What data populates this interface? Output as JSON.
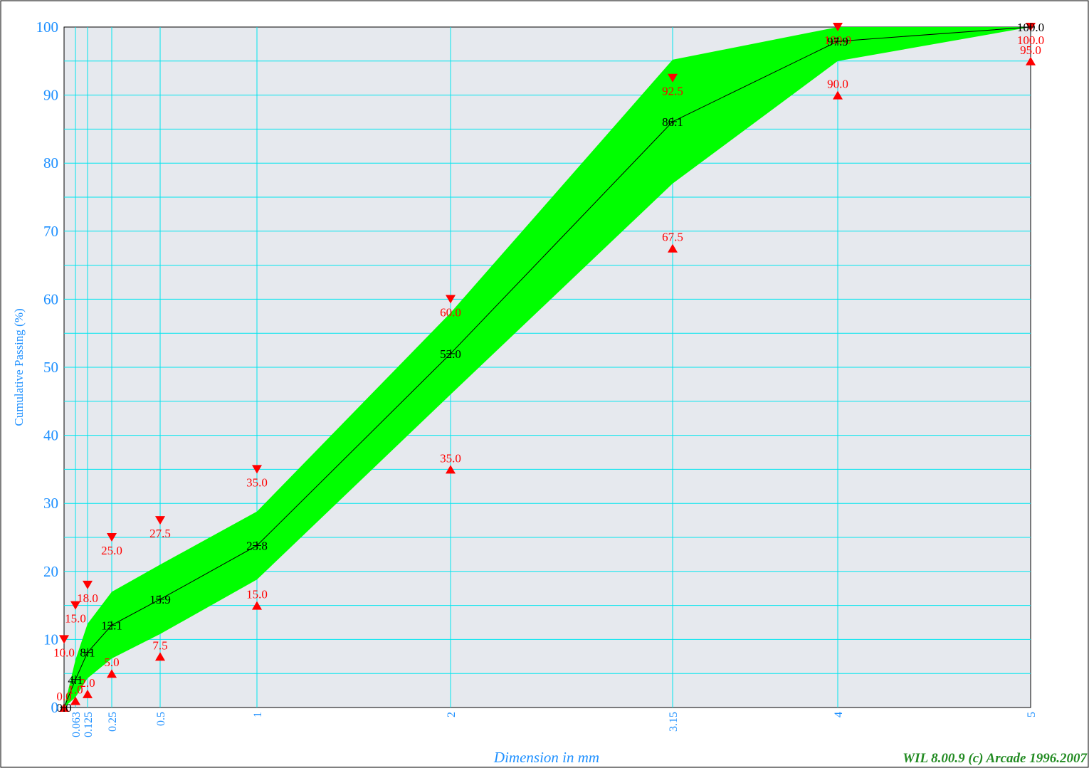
{
  "chart_data": {
    "type": "line",
    "title": "",
    "xlabel": "Dimension in mm",
    "ylabel": "Cumulative Passing (%)",
    "credit": "WIL 8.00.9 (c) Arcade 1996.2007",
    "x_scale": "categorical-sieves",
    "x_ticks": [
      "0",
      "0.063",
      "0.125",
      "0.25",
      "0.5",
      "1",
      "2",
      "3.15",
      "4",
      "5"
    ],
    "ylim": [
      0,
      100
    ],
    "y_ticks": [
      "0",
      "10",
      "20",
      "30",
      "40",
      "50",
      "60",
      "70",
      "80",
      "90",
      "100"
    ],
    "grid": true,
    "colors": {
      "plot_bg": "#e6e9ee",
      "grid": "#00e5ee",
      "band": "#00ff00",
      "curve": "#000000",
      "limits": "#ff0000",
      "axis_text": "#1e90ff",
      "credit": "#228b22"
    },
    "series": [
      {
        "name": "",
        "role": "curve",
        "x": [
          "0",
          "0.063",
          "0.125",
          "0.25",
          "0.5",
          "1",
          "2",
          "3.15",
          "4",
          "5"
        ],
        "values": [
          0.0,
          4.1,
          8.1,
          12.1,
          15.9,
          23.8,
          52.0,
          86.1,
          97.9,
          100.0
        ],
        "labels": [
          "0.0",
          "4.1",
          "8.1",
          "12.1",
          "15.9",
          "23.8",
          "52.0",
          "86.1",
          "97.9",
          "100.0"
        ]
      },
      {
        "name": "",
        "role": "upper-limit",
        "x": [
          "0",
          "0.063",
          "0.125",
          "0.25",
          "0.5",
          "1",
          "2",
          "3.15",
          "4",
          "5"
        ],
        "values": [
          10.0,
          15.0,
          18.0,
          25.0,
          27.5,
          35.0,
          60.0,
          92.5,
          100.0,
          100.0
        ],
        "labels": [
          "10.0",
          "15.0",
          "18.0",
          "25.0",
          "27.5",
          "35.0",
          "60.0",
          "92.5",
          "100.0",
          "100.0"
        ]
      },
      {
        "name": "",
        "role": "lower-limit",
        "x": [
          "0",
          "0.063",
          "0.125",
          "0.25",
          "0.5",
          "1",
          "2",
          "3.15",
          "4",
          "5"
        ],
        "values": [
          0.0,
          1.0,
          2.0,
          5.0,
          7.5,
          15.0,
          35.0,
          67.5,
          90.0,
          95.0
        ],
        "labels": [
          "0.0",
          "1.0",
          "2.0",
          "5.0",
          "7.5",
          "15.0",
          "35.0",
          "67.5",
          "90.0",
          "95.0"
        ]
      },
      {
        "name": "",
        "role": "band-upper",
        "x": [
          "0",
          "0.063",
          "0.125",
          "0.25",
          "0.5",
          "1",
          "2",
          "3.15",
          "4",
          "5"
        ],
        "values": [
          0.0,
          7.0,
          12.3,
          17.0,
          21.0,
          28.8,
          58.0,
          95.2,
          100.0,
          100.0
        ]
      },
      {
        "name": "",
        "role": "band-lower",
        "x": [
          "0",
          "0.063",
          "0.125",
          "0.25",
          "0.5",
          "1",
          "2",
          "3.15",
          "4",
          "5"
        ],
        "values": [
          0.0,
          1.5,
          4.3,
          7.2,
          10.8,
          18.8,
          46.0,
          77.0,
          95.0,
          100.0
        ]
      }
    ]
  }
}
